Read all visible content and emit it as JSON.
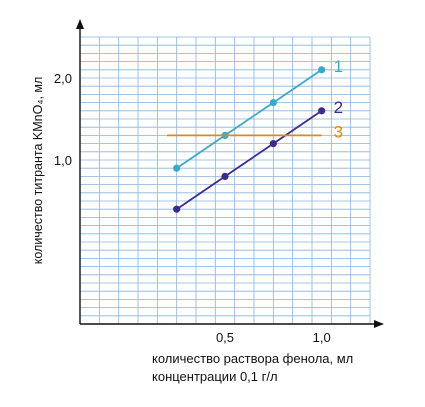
{
  "chart_data": {
    "type": "line",
    "xlabel_lines": [
      "количество раствора фенола, мл",
      "концентрации 0,1 г/л"
    ],
    "ylabel": "количество титранта KMnO₄, мл",
    "xlim": [
      -0.25,
      1.25
    ],
    "ylim": [
      -1.0,
      2.5
    ],
    "x_ticks": [
      {
        "value": 0.5,
        "label": "0,5"
      },
      {
        "value": 1.0,
        "label": "1,0"
      }
    ],
    "y_ticks": [
      {
        "value": 1.0,
        "label": "1,0"
      },
      {
        "value": 2.0,
        "label": "2,0"
      }
    ],
    "grid": true,
    "grid_step_x": 0.1,
    "grid_step_y": 0.1,
    "grid_color": "#8ab4dc",
    "series": [
      {
        "name": "1",
        "color": "#3aa9c7",
        "markers": true,
        "x": [
          0.25,
          0.5,
          0.75,
          1.0
        ],
        "y": [
          0.9,
          1.3,
          1.7,
          2.1
        ]
      },
      {
        "name": "2",
        "color": "#3e2a8c",
        "markers": true,
        "x": [
          0.25,
          0.5,
          0.75,
          1.0
        ],
        "y": [
          0.4,
          0.8,
          1.2,
          1.6
        ]
      },
      {
        "name": "3",
        "color": "#d98a1f",
        "markers": false,
        "x": [
          0.2,
          1.0
        ],
        "y": [
          1.3,
          1.3
        ]
      }
    ]
  }
}
